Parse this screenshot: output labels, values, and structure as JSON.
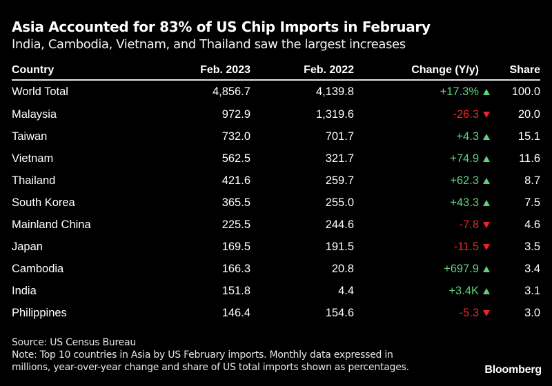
{
  "chart_data": {
    "type": "table",
    "title": "Asia Accounted for 83% of US Chip Imports in February",
    "subtitle": "India, Cambodia, Vietnam, and Thailand saw the largest increases",
    "columns": [
      "Country",
      "Feb. 2023",
      "Feb. 2022",
      "Change (Y/y)",
      "Share"
    ],
    "rows": [
      {
        "country": "World Total",
        "feb2023": "4,856.7",
        "feb2022": "4,139.8",
        "change": "+17.3%",
        "direction": "up",
        "share": "100.0"
      },
      {
        "country": "Malaysia",
        "feb2023": "972.9",
        "feb2022": "1,319.6",
        "change": "-26.3",
        "direction": "down",
        "share": "20.0"
      },
      {
        "country": "Taiwan",
        "feb2023": "732.0",
        "feb2022": "701.7",
        "change": "+4.3",
        "direction": "up",
        "share": "15.1"
      },
      {
        "country": "Vietnam",
        "feb2023": "562.5",
        "feb2022": "321.7",
        "change": "+74.9",
        "direction": "up",
        "share": "11.6"
      },
      {
        "country": "Thailand",
        "feb2023": "421.6",
        "feb2022": "259.7",
        "change": "+62.3",
        "direction": "up",
        "share": "8.7"
      },
      {
        "country": "South Korea",
        "feb2023": "365.5",
        "feb2022": "255.0",
        "change": "+43.3",
        "direction": "up",
        "share": "7.5"
      },
      {
        "country": "Mainland China",
        "feb2023": "225.5",
        "feb2022": "244.6",
        "change": "-7.8",
        "direction": "down",
        "share": "4.6"
      },
      {
        "country": "Japan",
        "feb2023": "169.5",
        "feb2022": "191.5",
        "change": "-11.5",
        "direction": "down",
        "share": "3.5"
      },
      {
        "country": "Cambodia",
        "feb2023": "166.3",
        "feb2022": "20.8",
        "change": "+697.9",
        "direction": "up",
        "share": "3.4"
      },
      {
        "country": "India",
        "feb2023": "151.8",
        "feb2022": "4.4",
        "change": "+3.4K",
        "direction": "up",
        "share": "3.1"
      },
      {
        "country": "Philippines",
        "feb2023": "146.4",
        "feb2022": "154.6",
        "change": "-5.3",
        "direction": "down",
        "share": "3.0"
      }
    ],
    "units": "millions (USD); change and share in percent"
  },
  "colors": {
    "background": "#000000",
    "positive": "#5ed17c",
    "negative": "#e8262a",
    "text": "#ffffff"
  },
  "footer": {
    "source": "Source: US Census Bureau",
    "note_line1": "Note: Top 10 countries in Asia by US February imports. Monthly data expressed in",
    "note_line2": "millions, year-over-year change and share of US total imports shown as percentages.",
    "brand": "Bloomberg"
  }
}
